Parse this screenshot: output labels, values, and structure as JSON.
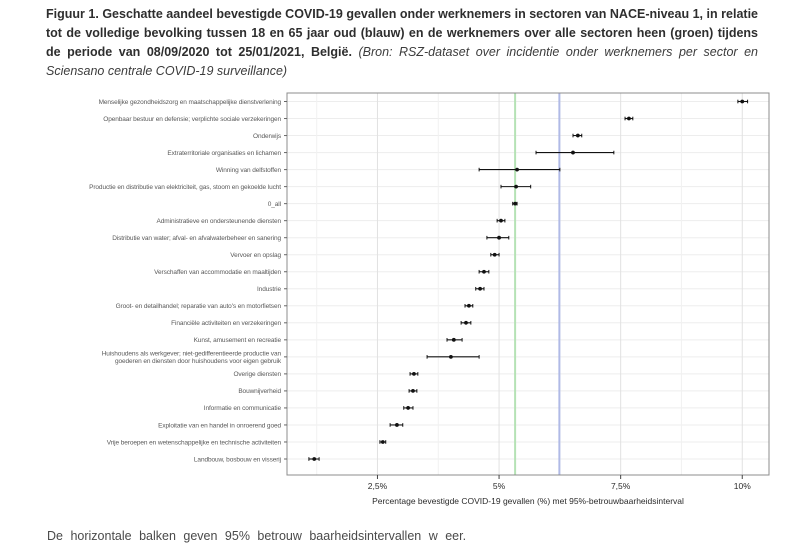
{
  "figure": {
    "caption_bold": "Figuur 1. Geschatte aandeel bevestigde COVID-19 gevallen onder werknemers in sectoren van NACE-niveau 1, in relatie tot de volledige bevolking tussen 18 en 65 jaar oud (blauw) en de werknemers over alle sectoren heen (groen) tijdens de periode van 08/09/2020 tot 25/01/2021, België. ",
    "caption_source_italic": "(Bron: RSZ-dataset over incidentie onder werknemers per sector en Sciensano centrale COVID-19 surveillance)",
    "footnote": "De horizontale balken geven 95% betrouw baarheidsintervallen w eer."
  },
  "chart_data": {
    "type": "scatter",
    "orientation": "horizontal",
    "xlabel": "Percentage bevestigde COVID-19 gevallen (%) met 95%-betrouwbaarheidsinterval",
    "xlim": [
      0.64,
      10.55
    ],
    "grid": true,
    "x_ticks": [
      {
        "value": 2.5,
        "label": "2,5%"
      },
      {
        "value": 5,
        "label": "5%"
      },
      {
        "value": 7.5,
        "label": "7,5%"
      },
      {
        "value": 10,
        "label": "10%"
      }
    ],
    "x_minor_ticks": [
      1.25,
      3.75,
      6.25,
      8.75
    ],
    "reference_lines": [
      {
        "name": "werknemers-alle-sectoren-groen",
        "value": 5.33,
        "color": "#b5e2b5"
      },
      {
        "name": "volledige-bevolking-18-65-blauw",
        "value": 6.24,
        "color": "#b0bae6"
      }
    ],
    "point_color": "#121212",
    "points": [
      {
        "category": "Menselijke gezondheidszorg en maatschappelijke dienstverlening",
        "value": 10.0,
        "ci_low": 9.91,
        "ci_high": 10.11
      },
      {
        "category": "Openbaar bestuur en defensie; verplichte sociale verzekeringen",
        "value": 7.67,
        "ci_low": 7.59,
        "ci_high": 7.75
      },
      {
        "category": "Onderwijs",
        "value": 6.62,
        "ci_low": 6.52,
        "ci_high": 6.7
      },
      {
        "category": "Extraterritoriale organisaties en lichamen",
        "value": 6.52,
        "ci_low": 5.76,
        "ci_high": 7.36
      },
      {
        "category": "Winning van delfstoffen",
        "value": 5.37,
        "ci_low": 4.59,
        "ci_high": 6.25
      },
      {
        "category": "Productie en distributie van elektriciteit, gas, stoom en gekoelde lucht",
        "value": 5.35,
        "ci_low": 5.04,
        "ci_high": 5.65
      },
      {
        "category": "0_all",
        "value": 5.33,
        "ci_low": 5.28,
        "ci_high": 5.37
      },
      {
        "category": "Administratieve en ondersteunende diensten",
        "value": 5.04,
        "ci_low": 4.96,
        "ci_high": 5.12
      },
      {
        "category": "Distributie van water; afval- en afvalwaterbeheer en sanering",
        "value": 5.0,
        "ci_low": 4.75,
        "ci_high": 5.2
      },
      {
        "category": "Vervoer en opslag",
        "value": 4.91,
        "ci_low": 4.83,
        "ci_high": 5.0
      },
      {
        "category": "Verschaffen van accommodatie en maaltijden",
        "value": 4.69,
        "ci_low": 4.59,
        "ci_high": 4.79
      },
      {
        "category": "Industrie",
        "value": 4.61,
        "ci_low": 4.52,
        "ci_high": 4.69
      },
      {
        "category": "Groot- en detailhandel; reparatie van auto's en motorfietsen",
        "value": 4.38,
        "ci_low": 4.3,
        "ci_high": 4.46
      },
      {
        "category": "Financiële activiteiten en verzekeringen",
        "value": 4.32,
        "ci_low": 4.22,
        "ci_high": 4.42
      },
      {
        "category": "Kunst, amusement en recreatie",
        "value": 4.07,
        "ci_low": 3.93,
        "ci_high": 4.24
      },
      {
        "category": "Huishoudens als werkgever; niet-gedifferentieerde productie van\ngoederen en diensten door huishoudens voor eigen gebruik",
        "value": 4.01,
        "ci_low": 3.52,
        "ci_high": 4.59
      },
      {
        "category": "Overige diensten",
        "value": 3.25,
        "ci_low": 3.17,
        "ci_high": 3.33
      },
      {
        "category": "Bouwnijverheid",
        "value": 3.23,
        "ci_low": 3.15,
        "ci_high": 3.31
      },
      {
        "category": "Informatie en communicatie",
        "value": 3.13,
        "ci_low": 3.04,
        "ci_high": 3.23
      },
      {
        "category": "Exploitatie van en handel in onroerend goed",
        "value": 2.9,
        "ci_low": 2.76,
        "ci_high": 3.02
      },
      {
        "category": "Vrije beroepen en wetenschappelijke en technische activiteiten",
        "value": 2.61,
        "ci_low": 2.55,
        "ci_high": 2.67
      },
      {
        "category": "Landbouw, bosbouw en visserij",
        "value": 1.2,
        "ci_low": 1.09,
        "ci_high": 1.3
      }
    ]
  }
}
